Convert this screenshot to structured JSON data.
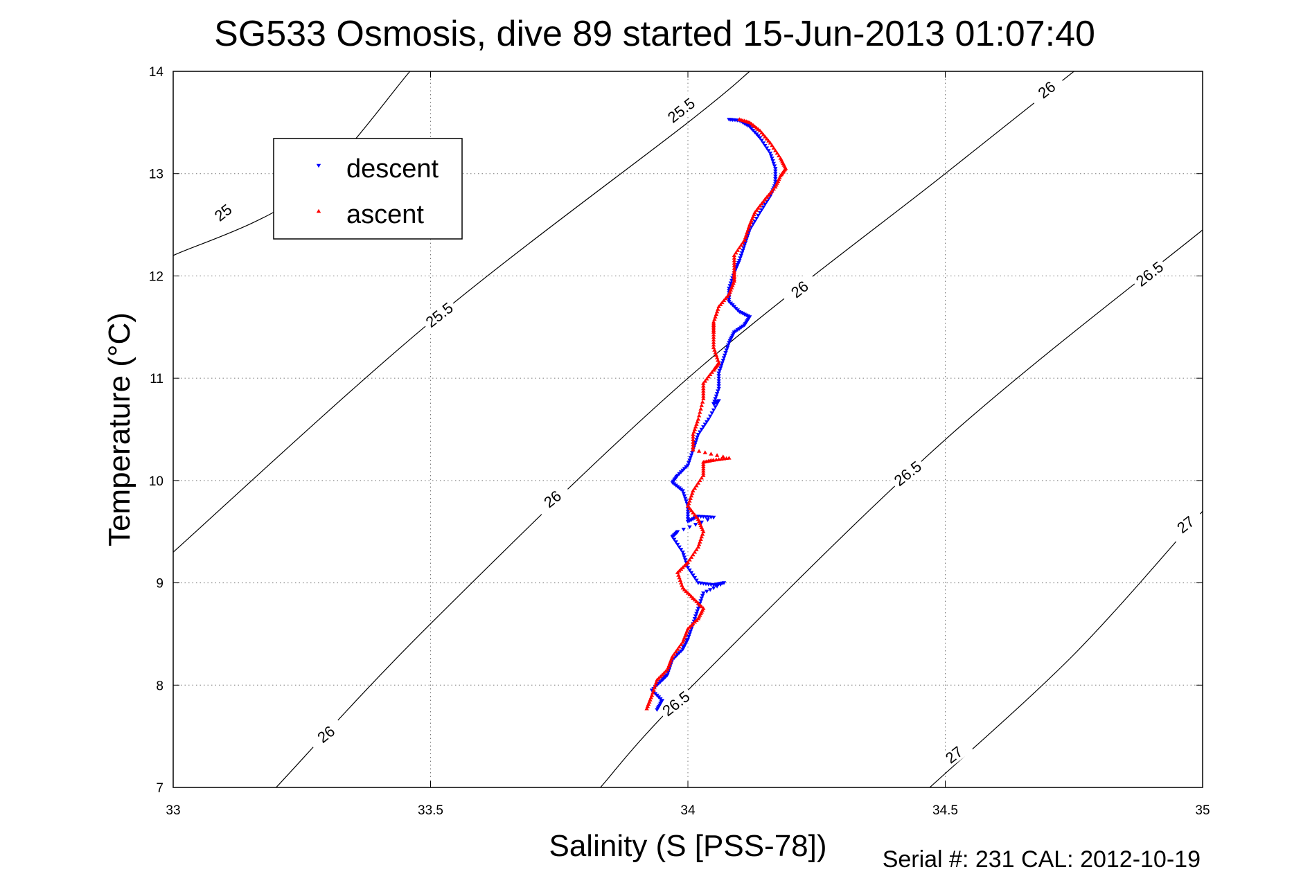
{
  "chart_data": {
    "type": "scatter",
    "title": "SG533 Osmosis, dive 89 started 15-Jun-2013 01:07:40",
    "xlabel": "Salinity (S [PSS-78])",
    "ylabel": "Temperature (°C)",
    "xlim": [
      33,
      35
    ],
    "ylim": [
      7,
      14
    ],
    "xticks": [
      "33",
      "33.5",
      "34",
      "34.5",
      "35"
    ],
    "yticks": [
      "7",
      "8",
      "9",
      "10",
      "11",
      "12",
      "13",
      "14"
    ],
    "grid": true,
    "legend_position": "top-left",
    "footer": "Serial #: 231  CAL: 2012-10-19",
    "series": [
      {
        "name": "descent",
        "color": "#0000ff",
        "marker": "triangle-down",
        "points": [
          [
            34.08,
            13.53
          ],
          [
            34.1,
            13.52
          ],
          [
            34.12,
            13.46
          ],
          [
            34.14,
            13.35
          ],
          [
            34.16,
            13.2
          ],
          [
            34.17,
            13.05
          ],
          [
            34.17,
            12.9
          ],
          [
            34.16,
            12.78
          ],
          [
            34.14,
            12.62
          ],
          [
            34.12,
            12.45
          ],
          [
            34.11,
            12.3
          ],
          [
            34.1,
            12.15
          ],
          [
            34.09,
            12.03
          ],
          [
            34.08,
            11.88
          ],
          [
            34.08,
            11.75
          ],
          [
            34.1,
            11.65
          ],
          [
            34.12,
            11.6
          ],
          [
            34.11,
            11.52
          ],
          [
            34.09,
            11.45
          ],
          [
            34.08,
            11.35
          ],
          [
            34.07,
            11.2
          ],
          [
            34.06,
            11.05
          ],
          [
            34.06,
            10.9
          ],
          [
            34.05,
            10.75
          ],
          [
            34.06,
            10.78
          ],
          [
            34.04,
            10.6
          ],
          [
            34.02,
            10.45
          ],
          [
            34.01,
            10.3
          ],
          [
            34.0,
            10.15
          ],
          [
            33.98,
            10.05
          ],
          [
            33.97,
            9.98
          ],
          [
            33.99,
            9.9
          ],
          [
            34.0,
            9.75
          ],
          [
            34.0,
            9.6
          ],
          [
            34.02,
            9.65
          ],
          [
            34.05,
            9.64
          ],
          [
            33.98,
            9.5
          ],
          [
            33.97,
            9.45
          ],
          [
            33.99,
            9.3
          ],
          [
            34.0,
            9.15
          ],
          [
            34.02,
            9.0
          ],
          [
            34.05,
            8.98
          ],
          [
            34.07,
            9.0
          ],
          [
            34.03,
            8.9
          ],
          [
            34.02,
            8.75
          ],
          [
            34.01,
            8.6
          ],
          [
            34.0,
            8.45
          ],
          [
            33.99,
            8.35
          ],
          [
            33.97,
            8.25
          ],
          [
            33.96,
            8.1
          ],
          [
            33.95,
            8.05
          ],
          [
            33.93,
            7.95
          ],
          [
            33.95,
            7.85
          ],
          [
            33.94,
            7.76
          ]
        ]
      },
      {
        "name": "ascent",
        "color": "#ff0000",
        "marker": "triangle-up",
        "points": [
          [
            33.92,
            7.77
          ],
          [
            33.93,
            7.9
          ],
          [
            33.94,
            8.05
          ],
          [
            33.96,
            8.15
          ],
          [
            33.97,
            8.28
          ],
          [
            33.99,
            8.42
          ],
          [
            34.0,
            8.55
          ],
          [
            34.02,
            8.65
          ],
          [
            34.03,
            8.75
          ],
          [
            34.01,
            8.85
          ],
          [
            33.99,
            8.95
          ],
          [
            33.98,
            9.1
          ],
          [
            34.0,
            9.2
          ],
          [
            34.02,
            9.35
          ],
          [
            34.03,
            9.5
          ],
          [
            34.02,
            9.62
          ],
          [
            34.0,
            9.75
          ],
          [
            34.01,
            9.9
          ],
          [
            34.03,
            10.05
          ],
          [
            34.03,
            10.18
          ],
          [
            34.05,
            10.2
          ],
          [
            34.08,
            10.22
          ],
          [
            34.01,
            10.3
          ],
          [
            34.01,
            10.45
          ],
          [
            34.02,
            10.6
          ],
          [
            34.03,
            10.8
          ],
          [
            34.03,
            10.95
          ],
          [
            34.05,
            11.08
          ],
          [
            34.06,
            11.15
          ],
          [
            34.05,
            11.3
          ],
          [
            34.05,
            11.45
          ],
          [
            34.05,
            11.55
          ],
          [
            34.06,
            11.7
          ],
          [
            34.08,
            11.82
          ],
          [
            34.09,
            11.95
          ],
          [
            34.09,
            12.05
          ],
          [
            34.09,
            12.2
          ],
          [
            34.11,
            12.35
          ],
          [
            34.12,
            12.5
          ],
          [
            34.13,
            12.62
          ],
          [
            34.15,
            12.75
          ],
          [
            34.17,
            12.87
          ],
          [
            34.18,
            12.98
          ],
          [
            34.19,
            13.05
          ],
          [
            34.18,
            13.15
          ],
          [
            34.16,
            13.3
          ],
          [
            34.14,
            13.42
          ],
          [
            34.12,
            13.5
          ],
          [
            34.1,
            13.53
          ]
        ]
      }
    ],
    "contours": [
      {
        "label": "25",
        "points": [
          [
            33.0,
            12.2
          ],
          [
            33.25,
            12.8
          ],
          [
            33.46,
            14.0
          ]
        ]
      },
      {
        "label": "25.5",
        "points": [
          [
            33.0,
            9.3
          ],
          [
            33.5,
            11.55
          ],
          [
            34.0,
            13.5
          ],
          [
            34.12,
            14.0
          ]
        ]
      },
      {
        "label": "26",
        "points": [
          [
            33.2,
            7.0
          ],
          [
            33.5,
            8.6
          ],
          [
            34.0,
            11.0
          ],
          [
            34.5,
            13.0
          ],
          [
            34.75,
            14.0
          ]
        ]
      },
      {
        "label": "26.5",
        "points": [
          [
            33.83,
            7.0
          ],
          [
            34.0,
            7.95
          ],
          [
            34.5,
            10.4
          ],
          [
            35.0,
            12.45
          ]
        ]
      },
      {
        "label": "27",
        "points": [
          [
            34.47,
            7.0
          ],
          [
            34.75,
            8.3
          ],
          [
            35.0,
            9.7
          ]
        ]
      }
    ],
    "contour_labels": [
      {
        "text": "25",
        "x": 33.1,
        "y": 12.6
      },
      {
        "text": "25.5",
        "x": 33.99,
        "y": 13.6
      },
      {
        "text": "25.5",
        "x": 33.52,
        "y": 11.6
      },
      {
        "text": "26",
        "x": 34.7,
        "y": 13.8
      },
      {
        "text": "26",
        "x": 34.22,
        "y": 11.85
      },
      {
        "text": "26",
        "x": 33.74,
        "y": 9.8
      },
      {
        "text": "26",
        "x": 33.3,
        "y": 7.5
      },
      {
        "text": "26.5",
        "x": 34.9,
        "y": 12.0
      },
      {
        "text": "26.5",
        "x": 34.43,
        "y": 10.05
      },
      {
        "text": "26.5",
        "x": 33.98,
        "y": 7.8
      },
      {
        "text": "27",
        "x": 34.97,
        "y": 9.55
      },
      {
        "text": "27",
        "x": 34.52,
        "y": 7.3
      }
    ]
  }
}
